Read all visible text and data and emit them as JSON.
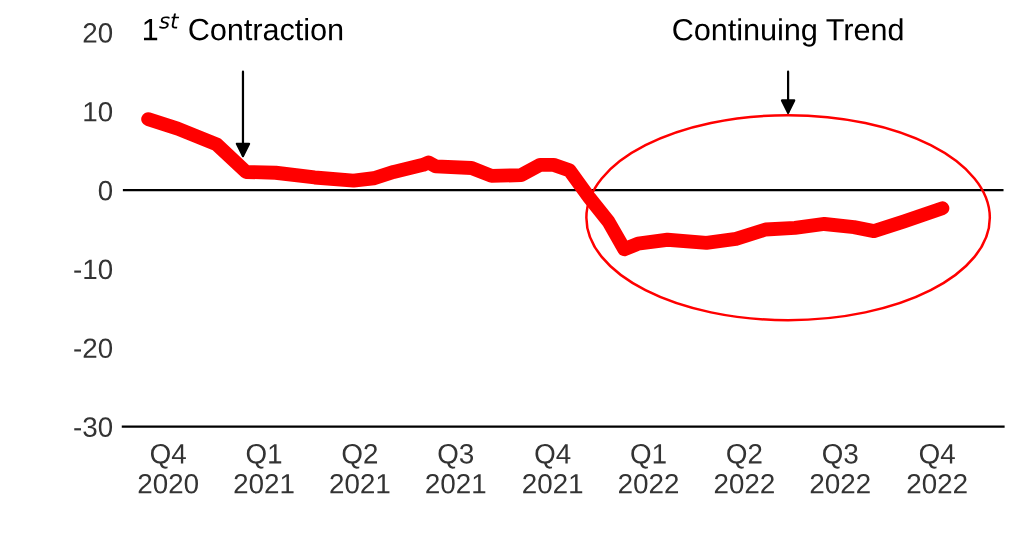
{
  "chart_data": {
    "type": "line",
    "x": [
      "2020-10-27",
      "2020-11-24",
      "2020-12-31",
      "2021-01-28",
      "2021-02-25",
      "2021-04-03",
      "2021-05-10",
      "2021-05-29",
      "2021-06-17",
      "2021-07-15",
      "2021-07-20",
      "2021-07-27",
      "2021-08-30",
      "2021-09-18",
      "2021-10-16",
      "2021-11-03",
      "2021-11-16",
      "2021-12-01",
      "2021-12-20",
      "2022-01-07",
      "2022-01-22",
      "2022-02-04",
      "2022-03-04",
      "2022-04-10",
      "2022-05-08",
      "2022-06-05",
      "2022-07-03",
      "2022-07-31",
      "2022-08-28",
      "2022-09-16",
      "2022-10-14",
      "2022-11-20"
    ],
    "series": [
      {
        "color": "#ff0000",
        "values": [
          9,
          7.8,
          5.8,
          2.3,
          2.2,
          1.6,
          1.2,
          1.5,
          2.3,
          3.2,
          3.5,
          3.0,
          2.8,
          1.8,
          1.9,
          3.2,
          3.2,
          2.5,
          -1,
          -4,
          -7.5,
          -6.8,
          -6.3,
          -6.7,
          -6.2,
          -5,
          -4.8,
          -4.3,
          -4.7,
          -5.2,
          -4,
          -2.3
        ]
      }
    ],
    "xlim": [
      "2020-10-03",
      "2023-01-17"
    ],
    "xticks": [
      {
        "value": "2020-11-15",
        "label": "Q4\n2020"
      },
      {
        "value": "2021-02-14",
        "label": "Q1\n2021"
      },
      {
        "value": "2021-05-16",
        "label": "Q2\n2021"
      },
      {
        "value": "2021-08-15",
        "label": "Q3\n2021"
      },
      {
        "value": "2021-11-15",
        "label": "Q4\n2021"
      },
      {
        "value": "2022-02-14",
        "label": "Q1\n2022"
      },
      {
        "value": "2022-05-16",
        "label": "Q2\n2022"
      },
      {
        "value": "2022-08-15",
        "label": "Q3\n2022"
      },
      {
        "value": "2022-11-15",
        "label": "Q4\n2022"
      }
    ],
    "ylim": [
      -30,
      20
    ],
    "yticks": [
      -30,
      -20,
      -10,
      0,
      10,
      20
    ],
    "ref_lines": [
      {
        "axis": "y",
        "value": 0,
        "color": "#000000"
      }
    ],
    "grid": false,
    "legend": false,
    "marker": "none",
    "line_style": "solid",
    "annotations": [
      {
        "text": "1$^{st}$ Contraction",
        "x": "2021-01-25",
        "y": 4
      },
      "Continuing Trend"
    ]
  }
}
